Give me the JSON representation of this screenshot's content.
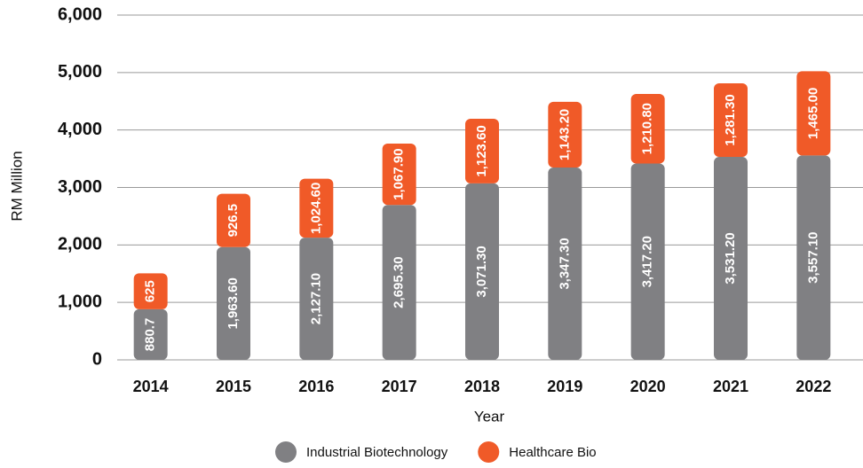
{
  "chart_data": {
    "type": "stacked_bar",
    "x_label": "Year",
    "y_label": "RM Million",
    "categories": [
      "2014",
      "2015",
      "2016",
      "2017",
      "2018",
      "2019",
      "2020",
      "2021",
      "2022"
    ],
    "series": [
      {
        "name": "Industrial Biotechnology",
        "color": "#808083",
        "values": [
          880.7,
          1963.6,
          2127.1,
          2695.3,
          3071.3,
          3347.3,
          3417.2,
          3531.2,
          3557.1
        ],
        "value_labels": [
          "880.7",
          "1,963.60",
          "2,127.10",
          "2,695.30",
          "3,071.30",
          "3,347.30",
          "3,417.20",
          "3,531.20",
          "3,557.10"
        ]
      },
      {
        "name": "Healthcare Bio",
        "color": "#f05a28",
        "values": [
          625,
          926.5,
          1024.6,
          1067.9,
          1123.6,
          1143.2,
          1210.8,
          1281.3,
          1465.0
        ],
        "value_labels": [
          "625",
          "926.5",
          "1,024.60",
          "1,067.90",
          "1,123.60",
          "1,143.20",
          "1,210.80",
          "1,281.30",
          "1,465.00"
        ]
      }
    ],
    "ylim": [
      0,
      6000
    ],
    "yticks": [
      0,
      {
        "value": 1000,
        "label": "1,000"
      },
      {
        "value": 2000,
        "label": "2,000"
      },
      {
        "value": 3000,
        "label": "3,000"
      },
      {
        "value": 4000,
        "label": "4,000"
      },
      {
        "value": 5000,
        "label": "5,000"
      },
      {
        "value": 6000,
        "label": "6,000"
      }
    ],
    "grid": true,
    "legend": "bottom"
  }
}
